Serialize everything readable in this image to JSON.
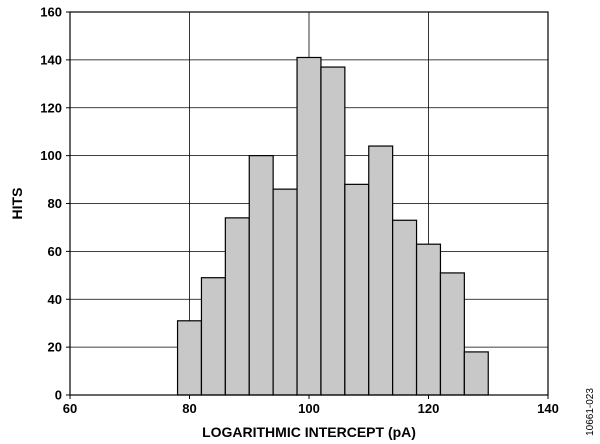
{
  "chart_data": {
    "type": "bar",
    "title": "",
    "xlabel": "LOGARITHMIC INTERCEPT (pA)",
    "ylabel": "HITS",
    "xlim": [
      60,
      140
    ],
    "ylim": [
      0,
      160
    ],
    "x_ticks": [
      "60",
      "80",
      "100",
      "120",
      "140"
    ],
    "y_ticks": [
      "0",
      "20",
      "40",
      "60",
      "80",
      "100",
      "120",
      "140",
      "160"
    ],
    "grid": true,
    "bin_width": 4,
    "bins": [
      {
        "x": 80,
        "value": 31
      },
      {
        "x": 84,
        "value": 49
      },
      {
        "x": 88,
        "value": 74
      },
      {
        "x": 92,
        "value": 100
      },
      {
        "x": 96,
        "value": 86
      },
      {
        "x": 100,
        "value": 141
      },
      {
        "x": 104,
        "value": 137
      },
      {
        "x": 108,
        "value": 88
      },
      {
        "x": 112,
        "value": 104
      },
      {
        "x": 116,
        "value": 73
      },
      {
        "x": 120,
        "value": 63
      },
      {
        "x": 124,
        "value": 51
      },
      {
        "x": 128,
        "value": 18
      }
    ],
    "colors": {
      "bar_fill": "#c8c8c8",
      "bar_stroke": "#000000",
      "grid": "#000000"
    }
  },
  "figure_id": "10661-023"
}
